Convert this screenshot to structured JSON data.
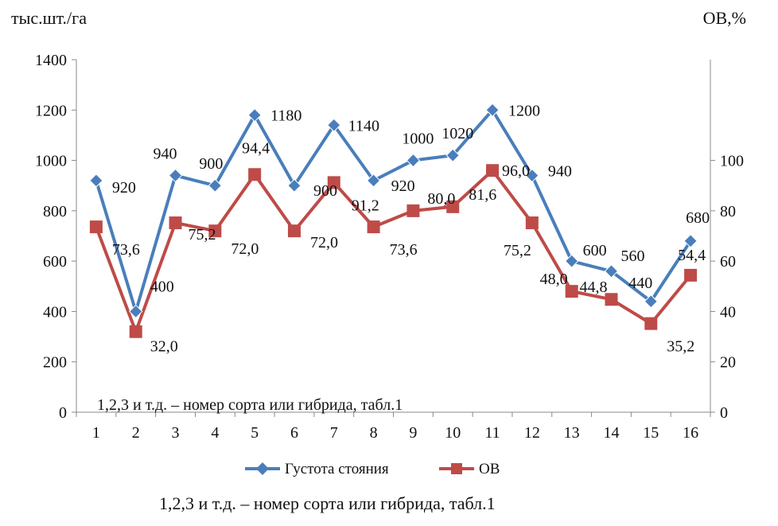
{
  "chart_data": {
    "type": "line",
    "categories": [
      "1",
      "2",
      "3",
      "4",
      "5",
      "6",
      "7",
      "8",
      "9",
      "10",
      "11",
      "12",
      "13",
      "14",
      "15",
      "16"
    ],
    "y_left_label": "тыс.шт./га",
    "y_right_label": "ОВ,%",
    "y_left_range": [
      0,
      1400
    ],
    "y_left_ticks": [
      "0",
      "200",
      "400",
      "600",
      "800",
      "1000",
      "1200",
      "1400"
    ],
    "y_right_range": [
      0,
      140
    ],
    "y_right_ticks": [
      "0",
      "20",
      "40",
      "60",
      "80",
      "100"
    ],
    "inner_note": "1,2,3 и т.д. – номер сорта или гибрида, табл.1",
    "caption": "1,2,3 и т.д. – номер сорта или гибрида, табл.1",
    "series": [
      {
        "name": "Густота стояния",
        "axis": "left",
        "color": "#4a7ebb",
        "marker": "diamond",
        "values": [
          920,
          400,
          940,
          900,
          1180,
          900,
          1140,
          920,
          1000,
          1020,
          1200,
          940,
          600,
          560,
          440,
          680
        ],
        "labels": [
          "920",
          "400",
          "940",
          "900",
          "1180",
          "900",
          "1140",
          "920",
          "1000",
          "1020",
          "1200",
          "940",
          "600",
          "560",
          "440",
          "680"
        ]
      },
      {
        "name": "ОВ",
        "axis": "right",
        "color": "#be4b48",
        "marker": "square",
        "values": [
          73.6,
          32.0,
          75.2,
          72.0,
          94.4,
          72.0,
          91.2,
          73.6,
          80.0,
          81.6,
          96.0,
          75.2,
          48.0,
          44.8,
          35.2,
          54.4
        ],
        "labels": [
          "73,6",
          "32,0",
          "75,2",
          "72,0",
          "94,4",
          "72,0",
          "91,2",
          "73,6",
          "80,0",
          "81,6",
          "96,0",
          "75,2",
          "48,0",
          "44,8",
          "35,2",
          "54,4"
        ]
      }
    ]
  }
}
